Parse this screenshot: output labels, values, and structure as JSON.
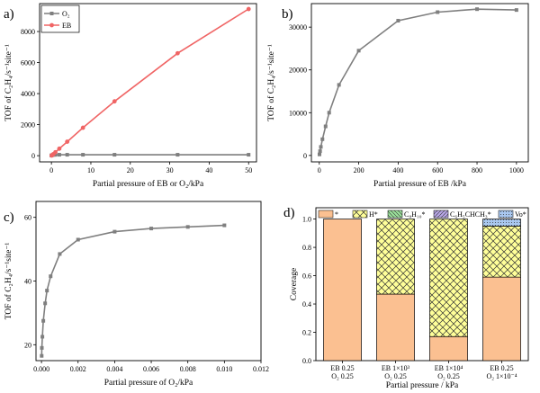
{
  "colors": {
    "gray": "#7f7f7f",
    "red": "#f06565",
    "orange": "#fbc091",
    "yellow": "#ffff99",
    "green": "#9be09b",
    "purple": "#b7a6e6",
    "blue": "#a9c8f0"
  },
  "chart_data": [
    {
      "panel": "a)",
      "type": "line",
      "xlabel": "Partial pressure of EB or O₂/kPa",
      "ylabel": "TOF of C₂H₄/s⁻¹site⁻¹",
      "xlim": [
        -3,
        52
      ],
      "ylim": [
        -400,
        9800
      ],
      "xticks": [
        0,
        10,
        20,
        30,
        40,
        50
      ],
      "xtick_labels": [
        "0",
        "10",
        "20",
        "30",
        "40",
        "50"
      ],
      "yticks": [
        0,
        2000,
        4000,
        6000,
        8000
      ],
      "ytick_labels": [
        "0",
        "2000",
        "4000",
        "6000",
        "8000"
      ],
      "legend": "top-left",
      "series": [
        {
          "name": "O₂",
          "color": "gray",
          "marker": "square",
          "x": [
            0.01,
            0.05,
            0.1,
            0.5,
            1,
            2,
            4,
            8,
            16,
            32,
            50
          ],
          "y": [
            5,
            20,
            35,
            50,
            55,
            60,
            60,
            60,
            60,
            60,
            60
          ]
        },
        {
          "name": "EB",
          "color": "red",
          "marker": "circle",
          "x": [
            0.05,
            0.25,
            0.5,
            1,
            2,
            4,
            8,
            16,
            32,
            50
          ],
          "y": [
            10,
            50,
            100,
            220,
            450,
            900,
            1800,
            3500,
            6600,
            9450
          ]
        }
      ]
    },
    {
      "panel": "b)",
      "type": "line",
      "xlabel": "Partial pressure of EB /kPa",
      "ylabel": "TOF of C₂H₄/s⁻¹site⁻¹",
      "xlim": [
        -40,
        1060
      ],
      "ylim": [
        -1500,
        35500
      ],
      "xticks": [
        0,
        200,
        400,
        600,
        800,
        1000
      ],
      "xtick_labels": [
        "0",
        "200",
        "400",
        "600",
        "800",
        "1000"
      ],
      "yticks": [
        0,
        10000,
        20000,
        30000
      ],
      "ytick_labels": [
        "0",
        "10000",
        "20000",
        "30000"
      ],
      "series": [
        {
          "name": "EB",
          "color": "gray",
          "marker": "square",
          "x": [
            1,
            4,
            8,
            16,
            32,
            50,
            100,
            200,
            400,
            600,
            800,
            1000
          ],
          "y": [
            250,
            1000,
            2000,
            3800,
            6800,
            10000,
            16500,
            24500,
            31500,
            33500,
            34200,
            34000
          ]
        }
      ]
    },
    {
      "panel": "c)",
      "type": "line",
      "xlabel": "Partial pressure of O₂/kPa",
      "ylabel": "TOF of C₂H₄/s⁻¹site⁻¹",
      "xlim": [
        -0.0003,
        0.012
      ],
      "ylim": [
        15,
        65
      ],
      "xticks": [
        0,
        0.002,
        0.004,
        0.006,
        0.008,
        0.01,
        0.012
      ],
      "xtick_labels": [
        "0.000",
        "0.002",
        "0.004",
        "0.006",
        "0.008",
        "0.010",
        "0.012"
      ],
      "yticks": [
        20,
        40,
        60
      ],
      "ytick_labels": [
        "20",
        "40",
        "60"
      ],
      "series": [
        {
          "name": "O₂",
          "color": "gray",
          "marker": "square",
          "x": [
            1e-05,
            2e-05,
            5e-05,
            0.0001,
            0.0002,
            0.0003,
            0.0005,
            0.001,
            0.002,
            0.004,
            0.006,
            0.008,
            0.01
          ],
          "y": [
            16.5,
            19,
            22.5,
            27.5,
            33,
            37,
            41.5,
            48.5,
            53,
            55.5,
            56.5,
            57,
            57.5
          ]
        }
      ]
    },
    {
      "panel": "d)",
      "type": "bar",
      "stacked": true,
      "xlabel": "Partial pressure / kPa",
      "ylabel": "Coverage",
      "ylim": [
        0,
        1.08
      ],
      "yticks": [
        0,
        0.2,
        0.4,
        0.6,
        0.8,
        1.0
      ],
      "ytick_labels": [
        "0.0",
        "0.2",
        "0.4",
        "0.6",
        "0.8",
        "1.0"
      ],
      "categories": [
        {
          "line1": "EB 0.25",
          "line2": "O₂ 0.25"
        },
        {
          "line1": "EB 1×10³",
          "line2": "O₂ 0.25"
        },
        {
          "line1": "EB 1×10⁴",
          "line2": "O₂ 0.25"
        },
        {
          "line1": "EB 0.25",
          "line2": "O₂ 1×10⁻⁴"
        }
      ],
      "legend": "top",
      "series": [
        {
          "name": "*",
          "color": "orange",
          "pattern": "none",
          "values": [
            1.0,
            0.47,
            0.17,
            0.59
          ]
        },
        {
          "name": "H*",
          "color": "yellow",
          "pattern": "crosshatch",
          "values": [
            0.0,
            0.53,
            0.83,
            0.36
          ]
        },
        {
          "name": "C₈H₁₀*",
          "color": "green",
          "pattern": "backslash",
          "values": [
            0,
            0,
            0,
            0
          ]
        },
        {
          "name": "C₆H₅CHCH₃*",
          "color": "purple",
          "pattern": "slash",
          "values": [
            0,
            0,
            0,
            0
          ]
        },
        {
          "name": "Vo*",
          "color": "blue",
          "pattern": "dots",
          "values": [
            0,
            0,
            0,
            0.05
          ]
        }
      ]
    }
  ]
}
